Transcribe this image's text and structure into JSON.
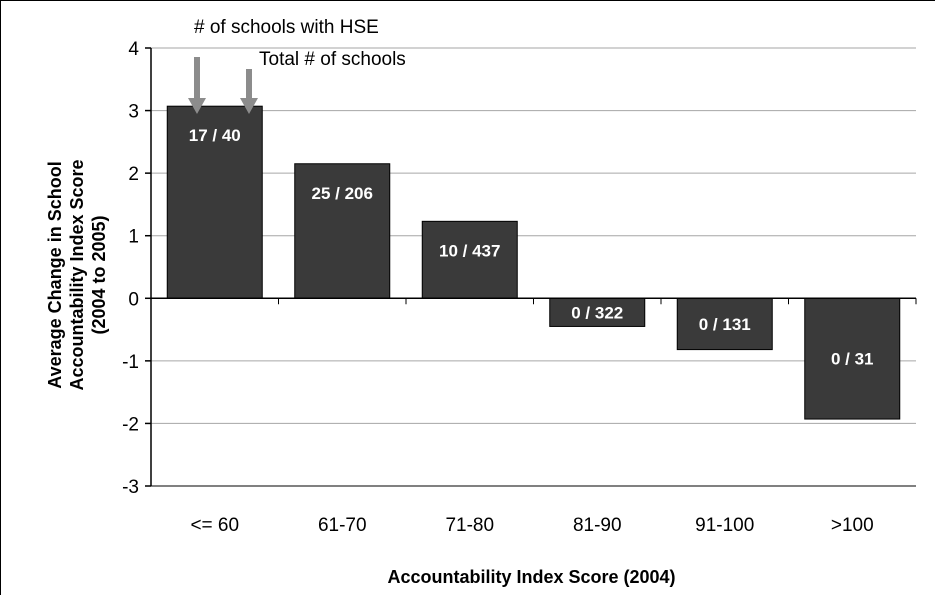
{
  "chart_data": {
    "type": "bar",
    "categories": [
      "<= 60",
      "61-70",
      "71-80",
      "81-90",
      "91-100",
      ">100"
    ],
    "values": [
      3.07,
      2.15,
      1.23,
      -0.45,
      -0.82,
      -1.93
    ],
    "bar_labels": [
      "17 / 40",
      "25 / 206",
      "10 / 437",
      "0 / 322",
      "0 / 131",
      "0 / 31"
    ],
    "xlabel": "Accountability Index Score (2004)",
    "ylabel_lines": [
      "Average Change in School",
      "Accountability Index Score",
      "(2004 to 2005)"
    ],
    "ylim": [
      -3,
      4
    ],
    "yticks": [
      -3,
      -2,
      -1,
      0,
      1,
      2,
      3,
      4
    ],
    "grid": true,
    "annotations": [
      {
        "text": "# of schools with HSE",
        "points_to": "numerator"
      },
      {
        "text": "Total # of schools",
        "points_to": "denominator"
      }
    ],
    "colors": {
      "bar": "#3a3a3a",
      "bar_edge": "#000000",
      "gridline": "#a6a6a6",
      "arrow": "#8c8c8c"
    }
  }
}
